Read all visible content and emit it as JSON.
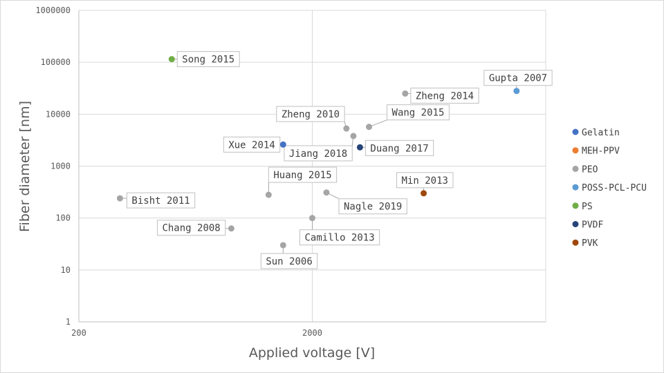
{
  "chart_data": {
    "type": "scatter",
    "xlabel": "Applied voltage [V]",
    "ylabel": "Fiber diameter [nm]",
    "x_scale": "log",
    "y_scale": "log",
    "xlim": [
      200,
      20000
    ],
    "ylim": [
      1,
      1000000
    ],
    "x_ticks": [
      "200",
      "2000"
    ],
    "y_ticks": [
      "1",
      "10",
      "100",
      "1000",
      "10000",
      "100000",
      "1000000"
    ],
    "grid": true,
    "legend_position": "right",
    "series": [
      {
        "name": "Gelatin",
        "color": "#4472c4",
        "points": [
          {
            "label": "Xue 2014",
            "x": 1500,
            "y": 2600
          }
        ]
      },
      {
        "name": "MEH-PPV",
        "color": "#ed7d31",
        "points": []
      },
      {
        "name": "PEO",
        "color": "#a5a5a5",
        "points": [
          {
            "label": "Bisht 2011",
            "x": 300,
            "y": 240
          },
          {
            "label": "Chang 2008",
            "x": 900,
            "y": 63
          },
          {
            "label": "Huang 2015",
            "x": 1300,
            "y": 280
          },
          {
            "label": "Sun 2006",
            "x": 1500,
            "y": 30
          },
          {
            "label": "Camillo 2013",
            "x": 2000,
            "y": 100
          },
          {
            "label": "Nagle 2019",
            "x": 2300,
            "y": 310
          },
          {
            "label": "Zheng 2010",
            "x": 2800,
            "y": 5300
          },
          {
            "label": "Jiang 2018",
            "x": 3000,
            "y": 3800
          },
          {
            "label": "Wang 2015",
            "x": 3500,
            "y": 5700
          },
          {
            "label": "Zheng 2014",
            "x": 5000,
            "y": 25000
          }
        ]
      },
      {
        "name": "POSS-PCL-PCU",
        "color": "#5b9bd5",
        "points": [
          {
            "label": "Gupta 2007",
            "x": 15000,
            "y": 28000
          }
        ]
      },
      {
        "name": "PS",
        "color": "#70ad47",
        "points": [
          {
            "label": "Song 2015",
            "x": 500,
            "y": 115000
          }
        ]
      },
      {
        "name": "PVDF",
        "color": "#264478",
        "points": [
          {
            "label": "Duang 2017",
            "x": 3200,
            "y": 2300
          }
        ]
      },
      {
        "name": "PVK",
        "color": "#9e480e",
        "points": [
          {
            "label": "Min 2013",
            "x": 6000,
            "y": 300
          }
        ]
      }
    ]
  }
}
